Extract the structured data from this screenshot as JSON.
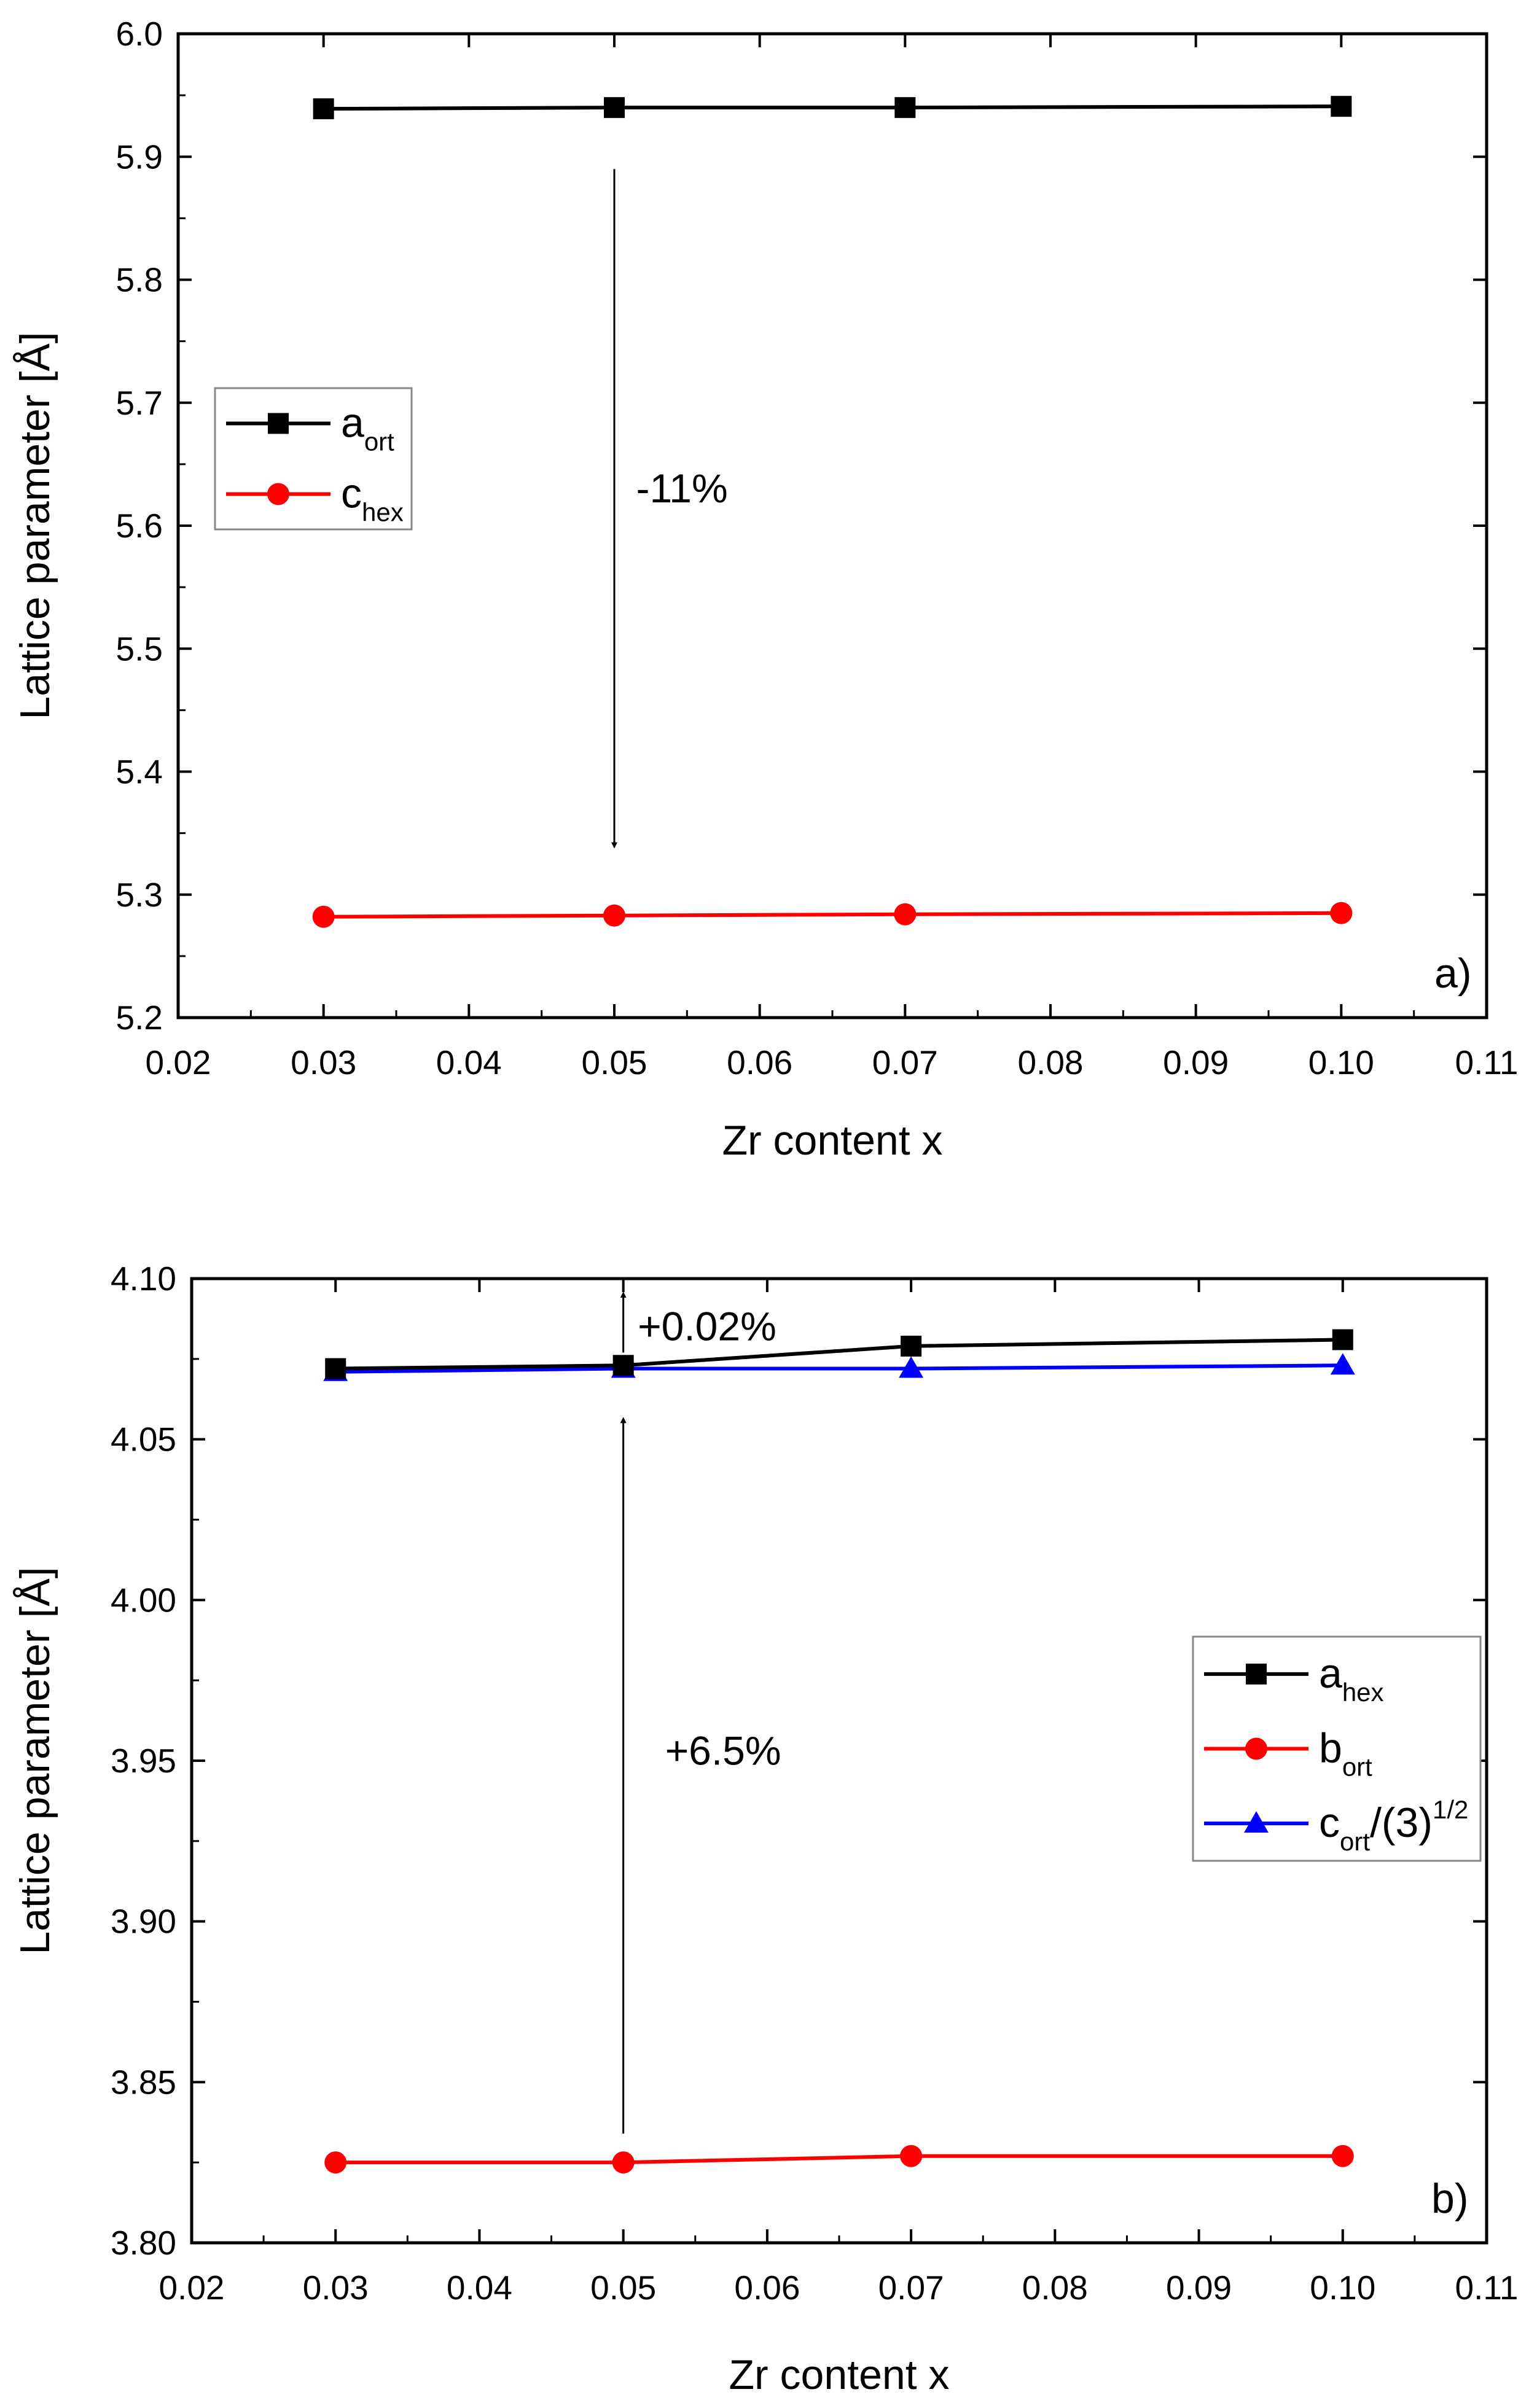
{
  "chart_data": [
    {
      "type": "line",
      "panel_label": "a)",
      "xlabel": "Zr content x",
      "ylabel": "Lattice parameter [Å]",
      "xlim": [
        0.02,
        0.11
      ],
      "ylim": [
        5.2,
        6.0
      ],
      "xticks": [
        "0.02",
        "0.03",
        "0.04",
        "0.05",
        "0.06",
        "0.07",
        "0.08",
        "0.09",
        "0.10",
        "0.11"
      ],
      "yticks": [
        "5.2",
        "5.3",
        "5.4",
        "5.5",
        "5.6",
        "5.7",
        "5.8",
        "5.9",
        "6.0"
      ],
      "x": [
        0.03,
        0.05,
        0.07,
        0.1
      ],
      "series": [
        {
          "name": "a",
          "sub": "ort",
          "sup": "",
          "tail": "",
          "color": "#000000",
          "marker": "square",
          "values": [
            5.939,
            5.94,
            5.94,
            5.941
          ]
        },
        {
          "name": "c",
          "sub": "hex",
          "sup": "",
          "tail": "",
          "color": "#ff0000",
          "marker": "circle",
          "values": [
            5.282,
            5.283,
            5.284,
            5.285
          ]
        }
      ],
      "legend_position": "middle-left",
      "annotations": [
        {
          "text": "-11%",
          "arrow_x": 0.05,
          "arrow_from": 5.89,
          "arrow_to": 5.34,
          "text_x": 0.0515,
          "text_y": 5.63
        }
      ]
    },
    {
      "type": "line",
      "panel_label": "b)",
      "xlabel": "Zr content x",
      "ylabel": "Lattice parameter [Å]",
      "xlim": [
        0.02,
        0.11
      ],
      "ylim": [
        3.8,
        4.1
      ],
      "xticks": [
        "0.02",
        "0.03",
        "0.04",
        "0.05",
        "0.06",
        "0.07",
        "0.08",
        "0.09",
        "0.10",
        "0.11"
      ],
      "yticks": [
        "3.80",
        "3.85",
        "3.90",
        "3.95",
        "4.00",
        "4.05",
        "4.10"
      ],
      "x": [
        0.03,
        0.05,
        0.07,
        0.1
      ],
      "series": [
        {
          "name": "a",
          "sub": "hex",
          "sup": "",
          "tail": "",
          "color": "#000000",
          "marker": "square",
          "values": [
            4.072,
            4.073,
            4.079,
            4.081
          ]
        },
        {
          "name": "b",
          "sub": "ort",
          "sup": "",
          "tail": "",
          "color": "#ff0000",
          "marker": "circle",
          "values": [
            3.825,
            3.825,
            3.827,
            3.827
          ]
        },
        {
          "name": "c",
          "sub": "ort",
          "sup": "1/2",
          "tail": "/(3)",
          "color": "#0000ff",
          "marker": "triangle",
          "values": [
            4.071,
            4.072,
            4.072,
            4.073
          ]
        }
      ],
      "legend_position": "middle-right",
      "annotations": [
        {
          "text": "+0.02%",
          "arrow_x": 0.05,
          "arrow_from": 4.077,
          "arrow_to": 4.095,
          "text_x": 0.051,
          "text_y": 4.085
        },
        {
          "text": "+6.5%",
          "arrow_x": 0.05,
          "arrow_from": 3.834,
          "arrow_to": 4.056,
          "text_x": 0.0529,
          "text_y": 3.953
        }
      ]
    }
  ]
}
